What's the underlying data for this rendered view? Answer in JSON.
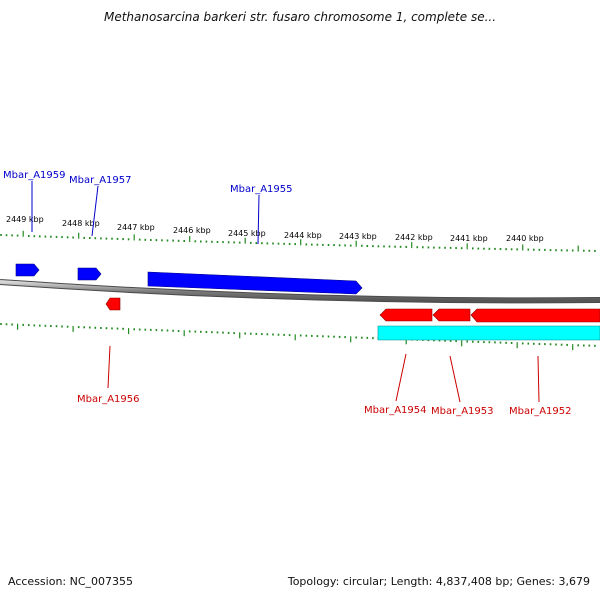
{
  "title": "Methanosarcina barkeri str. fusaro chromosome 1, complete se...",
  "footer": {
    "accession": "Accession: NC_007355",
    "summary": "Topology: circular; Length: 4,837,408 bp; Genes: 3,679"
  },
  "colors": {
    "forward_gene": "#0000ff",
    "reverse_gene": "#ff0000",
    "reverse_highlight": "#00ffff",
    "backbone": "#808080",
    "tick": "#228b22"
  },
  "ruler": {
    "labels": [
      "2449 kbp",
      "2448 kbp",
      "2447 kbp",
      "2446 kbp",
      "2445 kbp",
      "2444 kbp",
      "2443 kbp",
      "2442 kbp",
      "2441 kbp",
      "2440 kbp"
    ],
    "kbp_values": [
      2449,
      2448,
      2447,
      2446,
      2445,
      2444,
      2443,
      2442,
      2441,
      2440
    ]
  },
  "genes": {
    "forward": [
      {
        "id": "Mbar_A1959",
        "label": "Mbar_A1959"
      },
      {
        "id": "Mbar_A1957",
        "label": "Mbar_A1957"
      },
      {
        "id": "Mbar_A1955",
        "label": "Mbar_A1955"
      }
    ],
    "reverse": [
      {
        "id": "Mbar_A1956",
        "label": "Mbar_A1956"
      },
      {
        "id": "Mbar_A1954",
        "label": "Mbar_A1954"
      },
      {
        "id": "Mbar_A1953",
        "label": "Mbar_A1953"
      },
      {
        "id": "Mbar_A1952",
        "label": "Mbar_A1952"
      }
    ]
  }
}
